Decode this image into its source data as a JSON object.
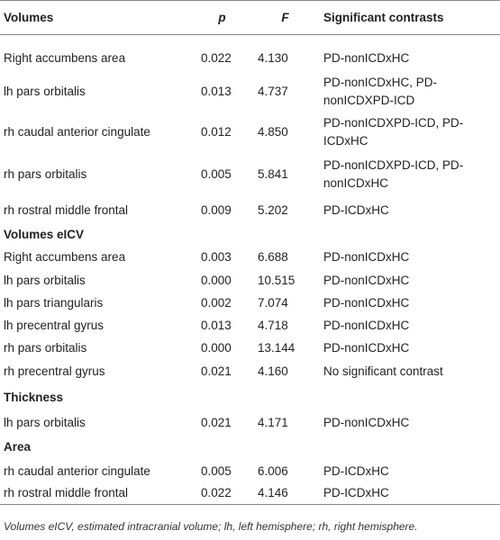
{
  "table": {
    "header": [
      "Volumes",
      "p",
      "F",
      "Significant contrasts"
    ],
    "rows": [
      [
        "Right accumbens area",
        "0.022",
        "4.130",
        "PD-nonICDxHC"
      ],
      [
        "lh pars orbitalis",
        "0.013",
        "4.737",
        "PD-nonICDxHC, PD-nonICDXPD-ICD"
      ],
      [
        "rh caudal anterior cingulate",
        "0.012",
        "4.850",
        "PD-nonICDXPD-ICD, PD-ICDxHC"
      ],
      [
        "rh pars orbitalis",
        "0.005",
        "5.841",
        "PD-nonICDXPD-ICD, PD-nonICDxHC"
      ],
      [
        "rh rostral middle frontal",
        "0.009",
        "5.202",
        "PD-ICDxHC"
      ],
      [
        "Volumes eICV"
      ],
      [
        "Right accumbens area",
        "0.003",
        "6.688",
        "PD-nonICDxHC"
      ],
      [
        "lh pars orbitalis",
        "0.000",
        "10.515",
        "PD-nonICDxHC"
      ],
      [
        "lh pars triangularis",
        "0.002",
        "7.074",
        "PD-nonICDxHC"
      ],
      [
        "lh precentral gyrus",
        "0.013",
        "4.718",
        "PD-nonICDxHC"
      ],
      [
        "rh pars orbitalis",
        "0.000",
        "13.144",
        "PD-nonICDxHC"
      ],
      [
        "rh precentral gyrus",
        "0.021",
        "4.160",
        "No significant contrast"
      ],
      [
        "Thickness"
      ],
      [
        "lh pars orbitalis",
        "0.021",
        "4.171",
        "PD-nonICDxHC"
      ],
      [
        "Area"
      ],
      [
        "rh caudal anterior cingulate",
        "0.005",
        "6.006",
        "PD-ICDxHC"
      ],
      [
        "rh rostral middle frontal",
        "0.022",
        "4.146",
        "PD-ICDxHC"
      ]
    ]
  },
  "footnote": "Volumes eICV, estimated intracranial volume; lh, left hemisphere; rh, right hemisphere."
}
